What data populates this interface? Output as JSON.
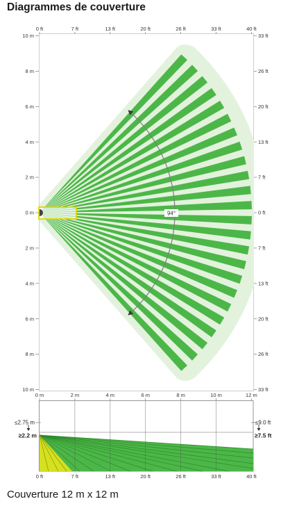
{
  "title": "Diagrammes de couverture",
  "top_view": {
    "top_axis": [
      "0 ft",
      "7 ft",
      "13 ft",
      "20 ft",
      "26 ft",
      "33 ft",
      "40 ft"
    ],
    "left_axis": [
      "10 m",
      "8 m",
      "6 m",
      "4 m",
      "2 m",
      "0 m",
      "2 m",
      "4 m",
      "6 m",
      "8 m",
      "10 m"
    ],
    "right_axis": [
      "33 ft",
      "26 ft",
      "20 ft",
      "13 ft",
      "7 ft",
      "0 ft",
      "7 ft",
      "13 ft",
      "20 ft",
      "26 ft",
      "33 ft"
    ],
    "angle_label": "94°"
  },
  "side_view": {
    "top_axis": [
      "0 m",
      "2 m",
      "4 m",
      "6 m",
      "8 m",
      "10 m",
      "12 m"
    ],
    "bottom_axis": [
      "0 ft",
      "7 ft",
      "13 ft",
      "20 ft",
      "26 ft",
      "33 ft",
      "40 ft"
    ],
    "height_left_max": "≤2.75 m",
    "height_left_min": "≥2.2 m",
    "height_right_max": "≤9.0 ft",
    "height_right_min": "≥7.5 ft"
  },
  "caption": "Couverture 12 m x 12 m",
  "colors": {
    "beam": "#4cb748",
    "coverage_area": "#e3f2dd",
    "creep_zone": "#e2d500",
    "side_near_zone": "#d5e01f",
    "angle_arc": "#7d7d7d"
  }
}
